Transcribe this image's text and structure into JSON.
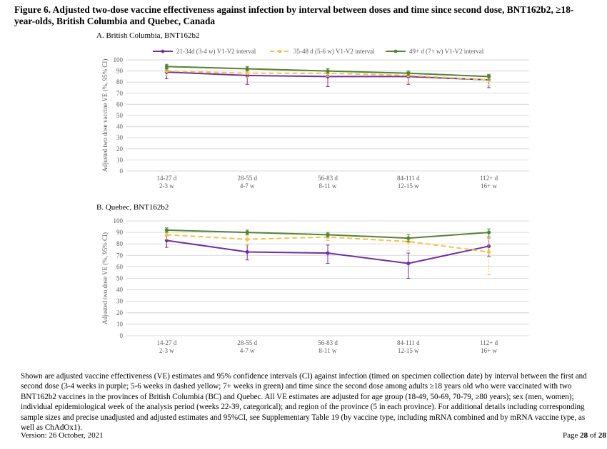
{
  "figure": {
    "title": "Figure 6. Adjusted two-dose vaccine effectiveness against infection by interval between doses and time since second dose, BNT162b2, ≥18-year-olds, British Columbia and Quebec, Canada"
  },
  "colors": {
    "purple": "#7030a0",
    "yellow": "#f5c342",
    "green": "#548235",
    "grid": "#d9d9d9",
    "axis_text": "#595959"
  },
  "chart_data": [
    {
      "type": "line",
      "title": "A. British Columbia, BNT162b2",
      "ylabel": "Adjusted two dose vaccine VE (%, 95% CI)",
      "ylim": [
        0,
        100
      ],
      "yticks": [
        0,
        10,
        20,
        30,
        40,
        50,
        60,
        70,
        80,
        90,
        100
      ],
      "categories": [
        {
          "line1": "14-27 d",
          "line2": "2-3 w"
        },
        {
          "line1": "28-55 d",
          "line2": "4-7 w"
        },
        {
          "line1": "56-83 d",
          "line2": "8-11 w"
        },
        {
          "line1": "84-111 d",
          "line2": "12-15 w"
        },
        {
          "line1": "112+ d",
          "line2": "16+ w"
        }
      ],
      "legend_position": "top",
      "series": [
        {
          "name": "21-34d (3-4 w) V1-V2 interval",
          "color": "#7030a0",
          "dashed": false,
          "values": [
            89,
            86,
            85,
            85,
            82
          ],
          "ci": [
            [
              83,
              92
            ],
            [
              78,
              90
            ],
            [
              76,
              90
            ],
            [
              78,
              89
            ],
            [
              75,
              86
            ]
          ]
        },
        {
          "name": "35-48 d (5-6 w) V1-V2 interval",
          "color": "#f5c342",
          "dashed": true,
          "values": [
            90,
            88,
            88,
            86,
            82
          ],
          "ci": [
            [
              86,
              93
            ],
            [
              84,
              91
            ],
            [
              85,
              90
            ],
            [
              80,
              89
            ],
            [
              77,
              86
            ]
          ]
        },
        {
          "name": "49+ d (7+ w) V1-V2 interval",
          "color": "#548235",
          "dashed": false,
          "values": [
            94,
            92,
            90,
            88,
            85
          ],
          "ci": [
            [
              91,
              96
            ],
            [
              90,
              94
            ],
            [
              88,
              92
            ],
            [
              86,
              90
            ],
            [
              82,
              87
            ]
          ]
        }
      ]
    },
    {
      "type": "line",
      "title": "B. Quebec, BNT162b2",
      "ylabel": "Adjusted two dose VE (%, 95% CI)",
      "ylim": [
        0,
        100
      ],
      "yticks": [
        0,
        10,
        20,
        30,
        40,
        50,
        60,
        70,
        80,
        90,
        100
      ],
      "categories": [
        {
          "line1": "14-27 d",
          "line2": "2-3 w"
        },
        {
          "line1": "28-55 d",
          "line2": "4-7 w"
        },
        {
          "line1": "56-83 d",
          "line2": "8-11 w"
        },
        {
          "line1": "84-111 d",
          "line2": "12-15 w"
        },
        {
          "line1": "112+ d",
          "line2": "16+ w"
        }
      ],
      "series": [
        {
          "name": "21-34d (3-4 w) V1-V2 interval",
          "color": "#7030a0",
          "dashed": false,
          "values": [
            83,
            73,
            72,
            63,
            78
          ],
          "ci": [
            [
              77,
              87
            ],
            [
              66,
              79
            ],
            [
              63,
              79
            ],
            [
              50,
              72
            ],
            [
              69,
              85
            ]
          ]
        },
        {
          "name": "35-48 d (5-6 w) V1-V2 interval",
          "color": "#f5c342",
          "dashed": true,
          "values": [
            88,
            84,
            86,
            82,
            73
          ],
          "ci": [
            [
              84,
              91
            ],
            [
              79,
              87
            ],
            [
              83,
              89
            ],
            [
              74,
              88
            ],
            [
              53,
              85
            ]
          ]
        },
        {
          "name": "49+ d (7+ w) V1-V2 interval",
          "color": "#548235",
          "dashed": false,
          "values": [
            92,
            90,
            88,
            85,
            90
          ],
          "ci": [
            [
              90,
              94
            ],
            [
              88,
              92
            ],
            [
              86,
              90
            ],
            [
              82,
              88
            ],
            [
              86,
              93
            ]
          ]
        }
      ]
    }
  ],
  "caption": "Shown are adjusted vaccine effectiveness (VE) estimates and 95% confidence intervals (CI) against infection (timed on specimen collection date) by interval between the first and second dose (3-4 weeks in purple; 5-6 weeks in dashed yellow; 7+ weeks in green) and time since the second dose among adults ≥18 years old who were vaccinated with two BNT162b2 vaccines in the provinces of British Columbia (BC) and Quebec. All VE estimates are adjusted for age group (18-49, 50-69, 70-79, ≥80 years); sex (men, women); individual epidemiological week of the analysis period (weeks 22-39, categorical); and region of the province (5 in each province). For additional details including corresponding sample sizes and precise unadjusted and adjusted estimates and 95%CI, see Supplementary Table 19 (by vaccine type, including mRNA combined and by mRNA vaccine type, as well as ChAdOx1).",
  "footer": {
    "version": "Version: 26 October, 2021",
    "page_prefix": "Page ",
    "page_current": "28",
    "page_sep": " of ",
    "page_total": "28"
  }
}
